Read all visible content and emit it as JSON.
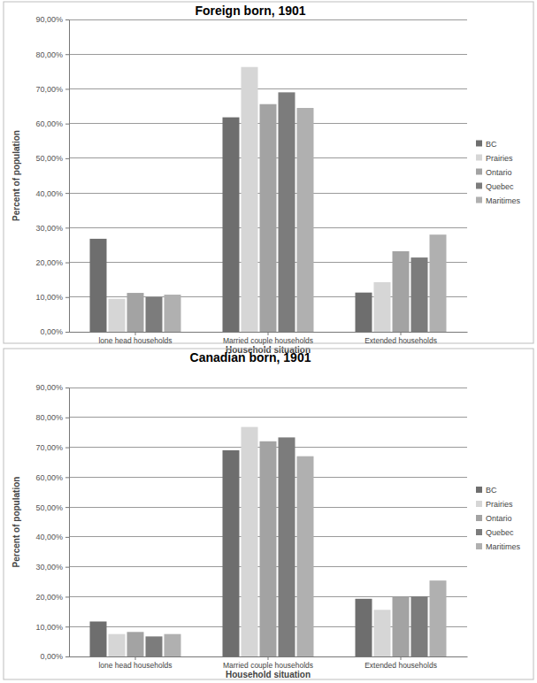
{
  "chart_data": [
    {
      "type": "bar",
      "title": "Foreign born, 1901",
      "x_label": "Household situation",
      "y_label": "Percent of population",
      "categories": [
        "lone head households",
        "Married couple households",
        "Extended households"
      ],
      "series": [
        {
          "name": "BC",
          "color": "#6e6e6e",
          "values": [
            26.8,
            61.8,
            11.3
          ]
        },
        {
          "name": "Prairies",
          "color": "#d6d6d6",
          "values": [
            9.5,
            76.3,
            14.3
          ]
        },
        {
          "name": "Ontario",
          "color": "#a3a3a3",
          "values": [
            11.2,
            65.6,
            23.2
          ]
        },
        {
          "name": "Quebec",
          "color": "#7c7c7c",
          "values": [
            10.0,
            69.0,
            21.4
          ]
        },
        {
          "name": "Maritimes",
          "color": "#b0b0b0",
          "values": [
            10.7,
            64.5,
            28.0
          ]
        }
      ],
      "ylim": [
        0,
        90
      ],
      "yticks": [
        {
          "value": 0,
          "label": "0,00%"
        },
        {
          "value": 10,
          "label": "10,00%"
        },
        {
          "value": 20,
          "label": "20,00%"
        },
        {
          "value": 30,
          "label": "30,00%"
        },
        {
          "value": 40,
          "label": "40,00%"
        },
        {
          "value": 50,
          "label": "50,00%"
        },
        {
          "value": 60,
          "label": "60,00%"
        },
        {
          "value": 70,
          "label": "70,00%"
        },
        {
          "value": 80,
          "label": "80,00%"
        },
        {
          "value": 90,
          "label": "90,00%"
        }
      ],
      "grid": true,
      "legend": "right"
    },
    {
      "type": "bar",
      "title": "Canadian born, 1901",
      "x_label": "Household situation",
      "y_label": "Percent of population",
      "categories": [
        "lone head households",
        "Married couple households",
        "Extended households"
      ],
      "series": [
        {
          "name": "BC",
          "color": "#6e6e6e",
          "values": [
            11.7,
            69.0,
            19.3
          ]
        },
        {
          "name": "Prairies",
          "color": "#d6d6d6",
          "values": [
            7.5,
            76.8,
            15.6
          ]
        },
        {
          "name": "Ontario",
          "color": "#a3a3a3",
          "values": [
            8.2,
            72.0,
            19.9
          ]
        },
        {
          "name": "Quebec",
          "color": "#7c7c7c",
          "values": [
            6.7,
            73.3,
            20.1
          ]
        },
        {
          "name": "Maritimes",
          "color": "#b0b0b0",
          "values": [
            7.5,
            67.0,
            25.4
          ]
        }
      ],
      "ylim": [
        0,
        90
      ],
      "yticks": [
        {
          "value": 0,
          "label": "0,00%"
        },
        {
          "value": 10,
          "label": "10,00%"
        },
        {
          "value": 20,
          "label": "20,00%"
        },
        {
          "value": 30,
          "label": "30,00%"
        },
        {
          "value": 40,
          "label": "40,00%"
        },
        {
          "value": 50,
          "label": "50,00%"
        },
        {
          "value": 60,
          "label": "60,00%"
        },
        {
          "value": 70,
          "label": "70,00%"
        },
        {
          "value": 80,
          "label": "80,00%"
        },
        {
          "value": 90,
          "label": "90,00%"
        }
      ],
      "grid": true,
      "legend": "right"
    }
  ]
}
